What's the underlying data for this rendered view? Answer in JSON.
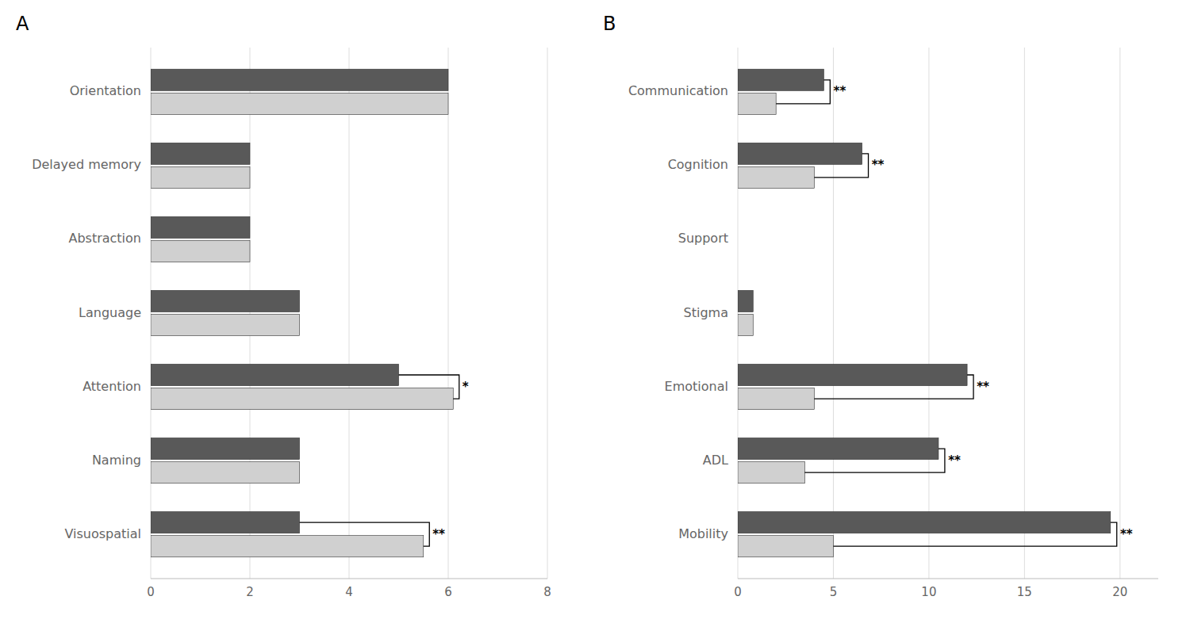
{
  "chart_data": [
    {
      "type": "bar",
      "orientation": "horizontal",
      "title": "A",
      "categories": [
        "Orientation",
        "Delayed memory",
        "Abstraction",
        "Language",
        "Attention",
        "Naming",
        "Visuospatial"
      ],
      "series": [
        {
          "color": "#595959",
          "values": [
            6.0,
            2.0,
            2.0,
            3.0,
            5.0,
            3.0,
            3.0
          ]
        },
        {
          "color": "#d0d0d0",
          "values": [
            6.0,
            2.0,
            2.0,
            3.0,
            6.1,
            3.0,
            5.5
          ]
        }
      ],
      "annotations": [
        {
          "category": "Attention",
          "text": "*"
        },
        {
          "category": "Visuospatial",
          "text": "**"
        }
      ],
      "xlim": [
        0,
        8
      ],
      "xticks": [
        0,
        2,
        4,
        6,
        8
      ],
      "grid": true
    },
    {
      "type": "bar",
      "orientation": "horizontal",
      "title": "B",
      "categories": [
        "Communication",
        "Cognition",
        "Support",
        "Stigma",
        "Emotional",
        "ADL",
        "Mobility"
      ],
      "series": [
        {
          "color": "#595959",
          "values": [
            4.5,
            6.5,
            0.0,
            0.8,
            12.0,
            10.5,
            19.5
          ]
        },
        {
          "color": "#d0d0d0",
          "values": [
            2.0,
            4.0,
            0.0,
            0.8,
            4.0,
            3.5,
            5.0
          ]
        }
      ],
      "annotations": [
        {
          "category": "Communication",
          "text": "**"
        },
        {
          "category": "Cognition",
          "text": "**"
        },
        {
          "category": "Emotional",
          "text": "**"
        },
        {
          "category": "ADL",
          "text": "**"
        },
        {
          "category": "Mobility",
          "text": "**"
        }
      ],
      "xlim": [
        0,
        22
      ],
      "xticks": [
        0,
        5,
        10,
        15,
        20
      ],
      "grid": true
    }
  ]
}
